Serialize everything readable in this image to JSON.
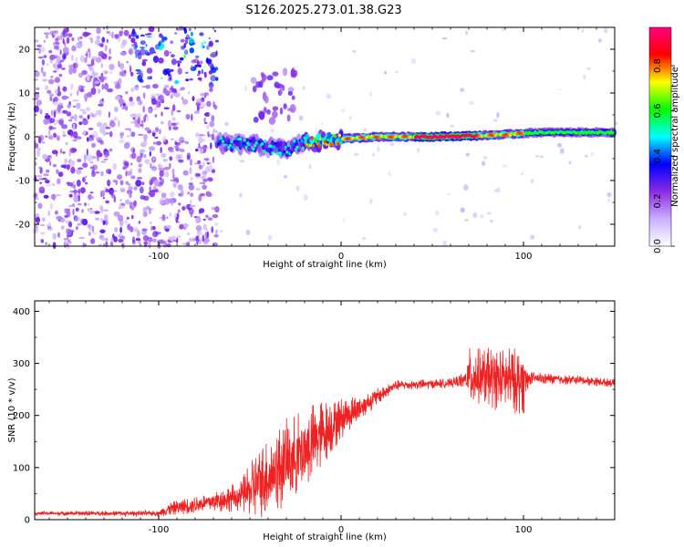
{
  "figure_title": "S126.2025.273.01.38.G23",
  "chart_data": [
    {
      "type": "heatmap",
      "name": "spectrogram",
      "xlabel": "Height of straight line (km)",
      "ylabel": "Frequency (Hz)",
      "xlim": [
        -168,
        150
      ],
      "ylim": [
        -25,
        25
      ],
      "xticks": [
        -100,
        0,
        100
      ],
      "yticks": [
        -20,
        -10,
        0,
        10,
        20
      ],
      "colorbar": {
        "label": "Normalized spectral amplitude",
        "range": [
          0,
          0.97
        ],
        "ticks": [
          0.0,
          0.2,
          0.4,
          0.6,
          0.8
        ],
        "colormap": [
          "#ffffff",
          "#c8b0ff",
          "#8a2be2",
          "#0000ff",
          "#00ffff",
          "#00ff00",
          "#ffff00",
          "#ff0000",
          "#ff0080"
        ]
      },
      "ridge": {
        "description": "narrow signal band near 0 Hz",
        "points": [
          [
            -66,
            -1.5
          ],
          [
            -45,
            -2
          ],
          [
            -30,
            -3
          ],
          [
            -22,
            -1.5
          ],
          [
            -10,
            -1
          ],
          [
            0,
            -0.5
          ],
          [
            20,
            0
          ],
          [
            50,
            0
          ],
          [
            70,
            0.2
          ],
          [
            90,
            0.5
          ],
          [
            100,
            0.8
          ],
          [
            110,
            1
          ],
          [
            150,
            1
          ]
        ],
        "peak_x_range": [
          40,
          75
        ],
        "peak_amplitude": 0.97
      },
      "noise_region_x": [
        -168,
        -68
      ]
    },
    {
      "type": "line",
      "name": "snr",
      "xlabel": "Height of straight line (km)",
      "ylabel": "SNR (10 * v/v)",
      "xlim": [
        -168,
        150
      ],
      "ylim": [
        0,
        420
      ],
      "xticks": [
        -100,
        0,
        100
      ],
      "yticks": [
        0,
        100,
        200,
        300,
        400
      ],
      "color": "#ee2222",
      "envelope": [
        {
          "x": -168,
          "base": 12,
          "spread": 8
        },
        {
          "x": -100,
          "base": 12,
          "spread": 10
        },
        {
          "x": -95,
          "base": 20,
          "spread": 25
        },
        {
          "x": -70,
          "base": 35,
          "spread": 40
        },
        {
          "x": -55,
          "base": 45,
          "spread": 60
        },
        {
          "x": -45,
          "base": 70,
          "spread": 140
        },
        {
          "x": -30,
          "base": 110,
          "spread": 170
        },
        {
          "x": -15,
          "base": 150,
          "spread": 150
        },
        {
          "x": 0,
          "base": 195,
          "spread": 80
        },
        {
          "x": 15,
          "base": 225,
          "spread": 40
        },
        {
          "x": 30,
          "base": 258,
          "spread": 20
        },
        {
          "x": 60,
          "base": 262,
          "spread": 18
        },
        {
          "x": 68,
          "base": 268,
          "spread": 30
        },
        {
          "x": 70,
          "base": 275,
          "spread": 110
        },
        {
          "x": 100,
          "base": 265,
          "spread": 130
        },
        {
          "x": 103,
          "base": 272,
          "spread": 25
        },
        {
          "x": 130,
          "base": 268,
          "spread": 18
        },
        {
          "x": 150,
          "base": 262,
          "spread": 16
        }
      ]
    }
  ]
}
